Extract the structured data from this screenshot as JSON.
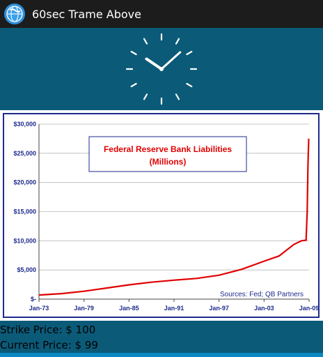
{
  "app": {
    "title": "60sec Trame Above",
    "icon": "globe-app-icon"
  },
  "clock": {
    "hour": 10,
    "minute": 8
  },
  "chart_data": {
    "type": "line",
    "title": "Federal Reserve Bank Liabilities",
    "subtitle": "(Millions)",
    "xlabel": "",
    "ylabel": "",
    "x_ticks": [
      "Jan-73",
      "Jan-79",
      "Jan-85",
      "Jan-91",
      "Jan-97",
      "Jan-03",
      "Jan-09"
    ],
    "y_ticks": [
      "$-",
      "$5,000",
      "$10,000",
      "$15,000",
      "$20,000",
      "$25,000",
      "$30,000"
    ],
    "ylim": [
      0,
      30000
    ],
    "xlim": [
      1973,
      2009
    ],
    "grid": true,
    "line_color": "#e00000",
    "annotation": "Sources: Fed; QB Partners",
    "series": [
      {
        "x": [
          1973,
          1976,
          1979,
          1982,
          1985,
          1988,
          1991,
          1994,
          1997,
          2000,
          2003,
          2005,
          2007,
          2008.0,
          2008.6,
          2008.75,
          2008.85,
          2008.95
        ],
        "values": [
          700,
          950,
          1350,
          1900,
          2450,
          2900,
          3250,
          3550,
          4100,
          5100,
          6500,
          7400,
          9400,
          10000,
          10100,
          15000,
          23000,
          27500
        ]
      }
    ]
  },
  "prices": {
    "strike": "Strike Price: $ 100",
    "current": "Current Price: $ 99"
  }
}
